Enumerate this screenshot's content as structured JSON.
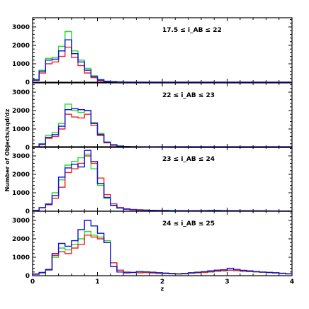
{
  "chart_data": {
    "type": "line",
    "drawstyle": "steps",
    "xlabel": "z",
    "ylabel": "Number of Objects/sqd/dz",
    "xlim": [
      0,
      4
    ],
    "ylim": [
      0,
      3500
    ],
    "x_ticks": [
      "0",
      "1",
      "2",
      "3",
      "4"
    ],
    "y_ticks": [
      "0",
      "1000",
      "2000",
      "3000"
    ],
    "bin_width": 0.1,
    "x_bin_edges_start": [
      0.0,
      0.1,
      0.2,
      0.3,
      0.4,
      0.5,
      0.6,
      0.7,
      0.8,
      0.9,
      1.0,
      1.1,
      1.2,
      1.3,
      1.4,
      1.5,
      1.6,
      1.7,
      1.8,
      1.9,
      2.0,
      2.1,
      2.2,
      2.3,
      2.4,
      2.5,
      2.6,
      2.7,
      2.8,
      2.9,
      3.0,
      3.1,
      3.2,
      3.3,
      3.4,
      3.5,
      3.6,
      3.7,
      3.8,
      3.9
    ],
    "series_colors": {
      "green": "#22dd22",
      "red": "#ee2222",
      "blue": "#1111dd"
    },
    "panels": [
      {
        "label": "17.5 ≤ i_AB ≤ 22",
        "series": [
          {
            "color": "green",
            "values": [
              150,
              650,
              1300,
              1350,
              1950,
              2750,
              1700,
              1200,
              750,
              350,
              150,
              60,
              40,
              20,
              10,
              5,
              0,
              0,
              0,
              0,
              0,
              0,
              0,
              0,
              0,
              0,
              0,
              0,
              0,
              0,
              0,
              0,
              0,
              0,
              0,
              0,
              0,
              0,
              0,
              0
            ]
          },
          {
            "color": "red",
            "values": [
              100,
              500,
              1000,
              1100,
              1400,
              1900,
              1350,
              900,
              500,
              250,
              80,
              40,
              20,
              10,
              5,
              0,
              0,
              0,
              0,
              0,
              0,
              0,
              0,
              0,
              0,
              0,
              0,
              0,
              0,
              0,
              0,
              0,
              0,
              0,
              0,
              0,
              0,
              0,
              0,
              0
            ]
          },
          {
            "color": "blue",
            "values": [
              120,
              600,
              1200,
              1250,
              1700,
              2300,
              1550,
              1100,
              650,
              300,
              120,
              50,
              30,
              15,
              8,
              3,
              0,
              0,
              0,
              0,
              0,
              0,
              0,
              0,
              0,
              0,
              0,
              0,
              0,
              0,
              0,
              0,
              0,
              0,
              0,
              0,
              0,
              0,
              0,
              0
            ]
          }
        ]
      },
      {
        "label": "22 ≤ i_AB ≤ 23",
        "series": [
          {
            "color": "green",
            "values": [
              40,
              200,
              650,
              800,
              1300,
              2350,
              2000,
              1900,
              2000,
              1350,
              750,
              300,
              150,
              80,
              50,
              40,
              30,
              20,
              20,
              15,
              10,
              10,
              5,
              5,
              5,
              5,
              5,
              5,
              0,
              0,
              0,
              0,
              0,
              0,
              0,
              0,
              0,
              0,
              0,
              0
            ]
          },
          {
            "color": "red",
            "values": [
              20,
              150,
              500,
              600,
              1000,
              1800,
              1650,
              1600,
              1800,
              1200,
              650,
              250,
              120,
              60,
              40,
              30,
              20,
              15,
              10,
              10,
              5,
              5,
              5,
              0,
              0,
              0,
              0,
              0,
              0,
              0,
              0,
              0,
              0,
              0,
              0,
              0,
              0,
              0,
              0,
              0
            ]
          },
          {
            "color": "blue",
            "values": [
              30,
              180,
              550,
              700,
              1150,
              2050,
              2100,
              2050,
              2000,
              1300,
              700,
              280,
              140,
              70,
              45,
              35,
              25,
              20,
              15,
              10,
              8,
              5,
              5,
              5,
              0,
              0,
              0,
              0,
              0,
              0,
              0,
              0,
              0,
              0,
              0,
              0,
              0,
              0,
              0,
              0
            ]
          }
        ]
      },
      {
        "label": "23 ≤ i_AB ≤ 24",
        "series": [
          {
            "color": "green",
            "values": [
              50,
              200,
              400,
              1000,
              1700,
              2500,
              2700,
              2900,
              3100,
              2300,
              1400,
              700,
              300,
              180,
              120,
              90,
              70,
              60,
              50,
              40,
              40,
              35,
              30,
              30,
              25,
              30,
              35,
              40,
              40,
              35,
              30,
              30,
              25,
              25,
              20,
              20,
              15,
              15,
              10,
              10
            ]
          },
          {
            "color": "red",
            "values": [
              30,
              180,
              350,
              700,
              1300,
              2100,
              2300,
              2600,
              3000,
              2600,
              1800,
              900,
              400,
              200,
              130,
              100,
              80,
              60,
              50,
              40,
              40,
              30,
              30,
              25,
              25,
              30,
              30,
              35,
              35,
              30,
              30,
              25,
              25,
              20,
              20,
              15,
              15,
              10,
              10,
              5
            ]
          },
          {
            "color": "blue",
            "values": [
              40,
              190,
              380,
              850,
              1850,
              2350,
              2550,
              2400,
              3300,
              2700,
              1500,
              750,
              320,
              170,
              110,
              80,
              65,
              55,
              45,
              35,
              35,
              30,
              30,
              25,
              20,
              25,
              30,
              35,
              35,
              30,
              30,
              25,
              20,
              20,
              15,
              15,
              10,
              10,
              5,
              5
            ]
          }
        ]
      },
      {
        "label": "24 ≤ i_AB ≤ 25",
        "series": [
          {
            "color": "green",
            "values": [
              80,
              150,
              300,
              1000,
              1500,
              1400,
              1700,
              2000,
              2400,
              2200,
              2100,
              1900,
              700,
              300,
              200,
              180,
              150,
              160,
              140,
              120,
              110,
              100,
              90,
              100,
              130,
              150,
              170,
              200,
              240,
              260,
              290,
              270,
              240,
              220,
              200,
              180,
              160,
              140,
              120,
              100
            ]
          },
          {
            "color": "red",
            "values": [
              100,
              180,
              350,
              1100,
              1300,
              1200,
              1500,
              1700,
              2200,
              2100,
              2000,
              1800,
              700,
              300,
              200,
              180,
              160,
              170,
              150,
              130,
              120,
              110,
              100,
              110,
              140,
              160,
              180,
              210,
              250,
              270,
              300,
              280,
              250,
              230,
              210,
              190,
              170,
              150,
              130,
              110
            ]
          },
          {
            "color": "blue",
            "values": [
              80,
              160,
              320,
              1200,
              1750,
              1600,
              1900,
              2500,
              3000,
              2700,
              2300,
              1800,
              500,
              200,
              150,
              170,
              230,
              210,
              190,
              160,
              140,
              120,
              100,
              120,
              160,
              190,
              220,
              260,
              300,
              320,
              400,
              340,
              290,
              260,
              230,
              200,
              180,
              160,
              130,
              100
            ]
          }
        ]
      }
    ]
  }
}
